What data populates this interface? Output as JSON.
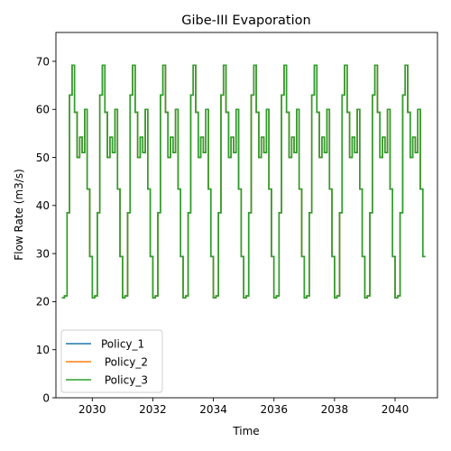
{
  "chart_data": {
    "type": "line",
    "title": "Gibe-III Evaporation",
    "xlabel": "Time",
    "ylabel": "Flow Rate (m3/s)",
    "xlim": [
      2028.8,
      2041.4
    ],
    "ylim": [
      0,
      76
    ],
    "x_ticks": [
      2030,
      2032,
      2034,
      2036,
      2038,
      2040
    ],
    "x_tick_labels": [
      "2030",
      "2032",
      "2034",
      "2036",
      "2038",
      "2040"
    ],
    "y_ticks": [
      0,
      10,
      20,
      30,
      40,
      50,
      60,
      70
    ],
    "y_tick_labels": [
      "0",
      "10",
      "20",
      "30",
      "40",
      "50",
      "60",
      "70"
    ],
    "grid": false,
    "legend_position": "lower-left",
    "monthly_profile_note_free": true,
    "months_per_year": 12,
    "start_year": 2029,
    "years": 12,
    "monthly_values": [
      20.8,
      21.2,
      38.5,
      63.0,
      69.2,
      59.4,
      50.0,
      54.2,
      51.0,
      60.0,
      43.4,
      29.4
    ],
    "series": [
      {
        "name": "Policy_1",
        "color": "#1f77b4"
      },
      {
        "name": " Policy_2",
        "color": "#ff7f0e"
      },
      {
        "name": " Policy_3",
        "color": "#2ca02c"
      }
    ]
  }
}
